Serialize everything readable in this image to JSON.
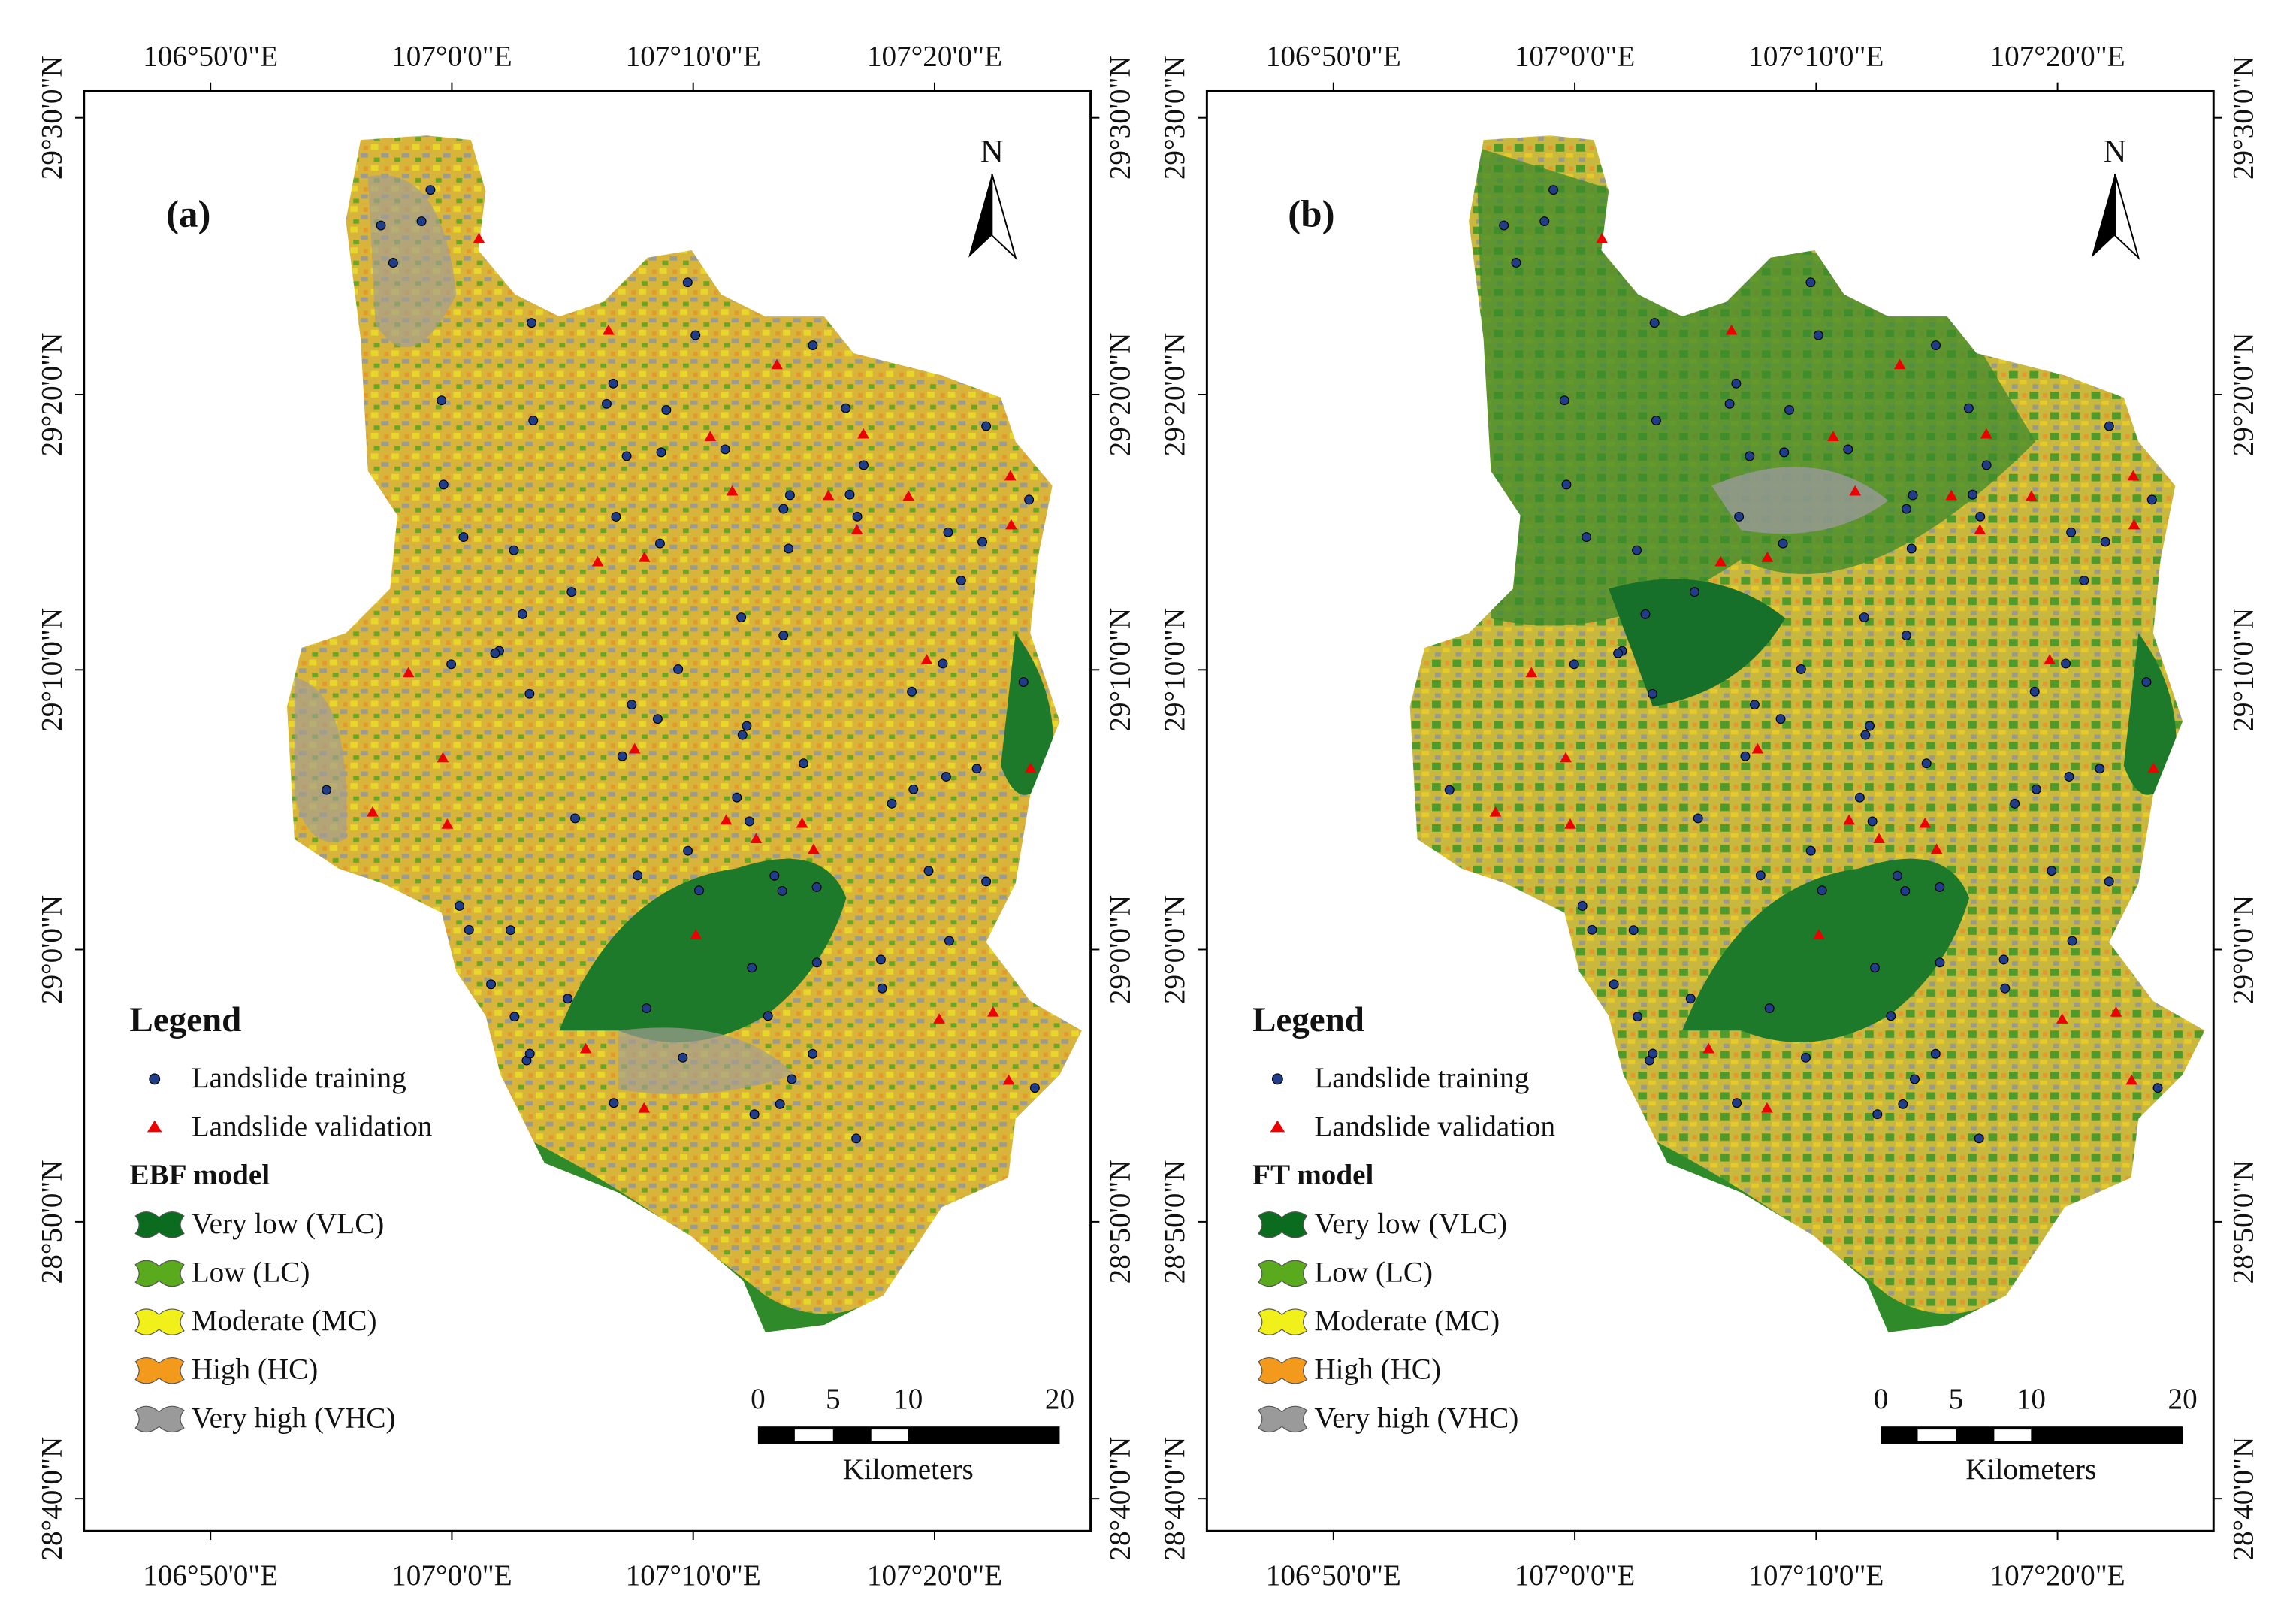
{
  "panels": [
    {
      "label": "(a)",
      "model": "EBF model"
    },
    {
      "label": "(b)",
      "model": "FT model"
    }
  ],
  "x_ticks": [
    "106°50'0\"E",
    "107°0'0\"E",
    "107°10'0\"E",
    "107°20'0\"E"
  ],
  "y_ticks": [
    "29°30'0\"N",
    "29°20'0\"N",
    "29°10'0\"N",
    "29°0'0\"N",
    "28°50'0\"N",
    "28°40'0\"N"
  ],
  "north": "N",
  "legend": {
    "title": "Legend",
    "points": [
      "Landslide training",
      "Landslide validation"
    ],
    "classes": [
      {
        "name": "Very low (VLC)",
        "color": "#0b6b1e"
      },
      {
        "name": "Low (LC)",
        "color": "#5aaa1e"
      },
      {
        "name": "Moderate (MC)",
        "color": "#f2f01a"
      },
      {
        "name": "High (HC)",
        "color": "#f39a1c"
      },
      {
        "name": "Very high (VHC)",
        "color": "#9a9a9a"
      }
    ]
  },
  "scale_bar": {
    "ticks": [
      "0",
      "5",
      "10",
      "20"
    ],
    "unit": "Kilometers"
  }
}
